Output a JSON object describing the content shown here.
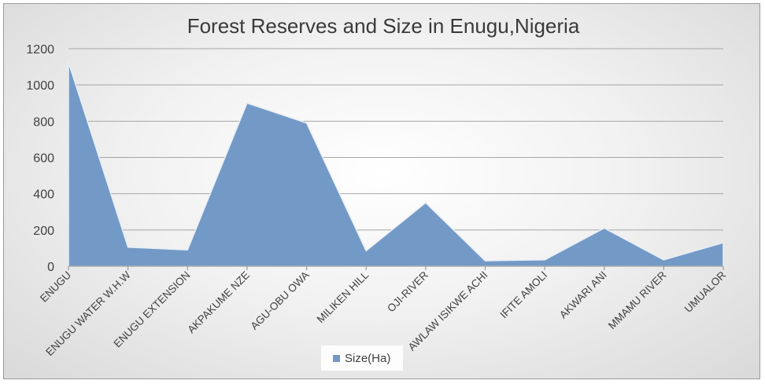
{
  "chart_data": {
    "type": "area",
    "title": "Forest Reserves and Size in Enugu,Nigeria",
    "xlabel": "",
    "ylabel": "",
    "ylim": [
      0,
      1200
    ],
    "yticks": [
      "0",
      "200",
      "400",
      "600",
      "800",
      "1000",
      "1200"
    ],
    "grid": true,
    "legend_position": "bottom",
    "categories": [
      "ENUGU",
      "ENUGU WATER W.H.W",
      "ENUGU EXTENSION",
      "AKPAKUME NZE",
      "AGU-OBU OWA",
      "MILIKEN HILL",
      "OJI-RIVER",
      "AWLAW ISIKWE ACHI",
      "IFITE AMOLI",
      "AKWARI ANI",
      "MMAMU RIVER",
      "UMUALOR"
    ],
    "series": [
      {
        "name": "Size(Ha)",
        "color": "#7399c6",
        "values": [
          1125,
          105,
          90,
          900,
          790,
          85,
          350,
          30,
          35,
          210,
          35,
          130
        ]
      }
    ]
  }
}
